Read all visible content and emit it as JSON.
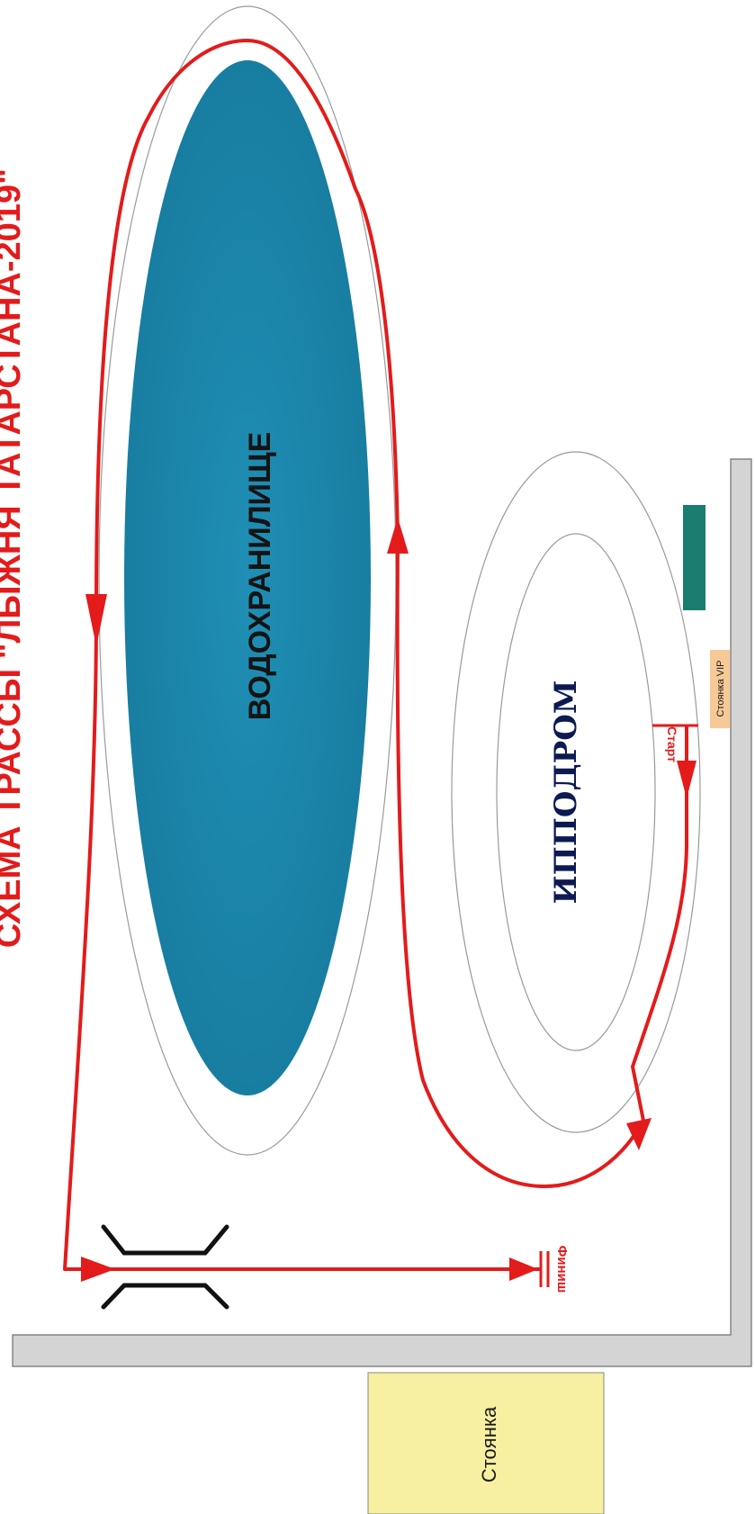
{
  "title": "СХЕМА ТРАССЫ \"ЛЫЖНЯ ТАТАРСТАНА-2019\"",
  "labels": {
    "reservoir": "ВОДОХРАНИЛИЩЕ",
    "hippodrome": "ИППОДРОМ",
    "start": "Старт",
    "finish": "Финиш",
    "parking_vip": "Стоянка VIP",
    "parking": "Стоянка"
  },
  "colors": {
    "route": "#e31b1b",
    "title": "#e31b1b",
    "reservoir": "#1a84a8",
    "hippodrome_text": "#0d1a52",
    "wall": "#d4d4d4",
    "parking": "#f7f0a0",
    "parking_vip": "#f7c996",
    "tent": "#1a7d6f"
  },
  "icons": {
    "bridge": "bridge-icon",
    "route_arrow": "arrow-icon"
  }
}
